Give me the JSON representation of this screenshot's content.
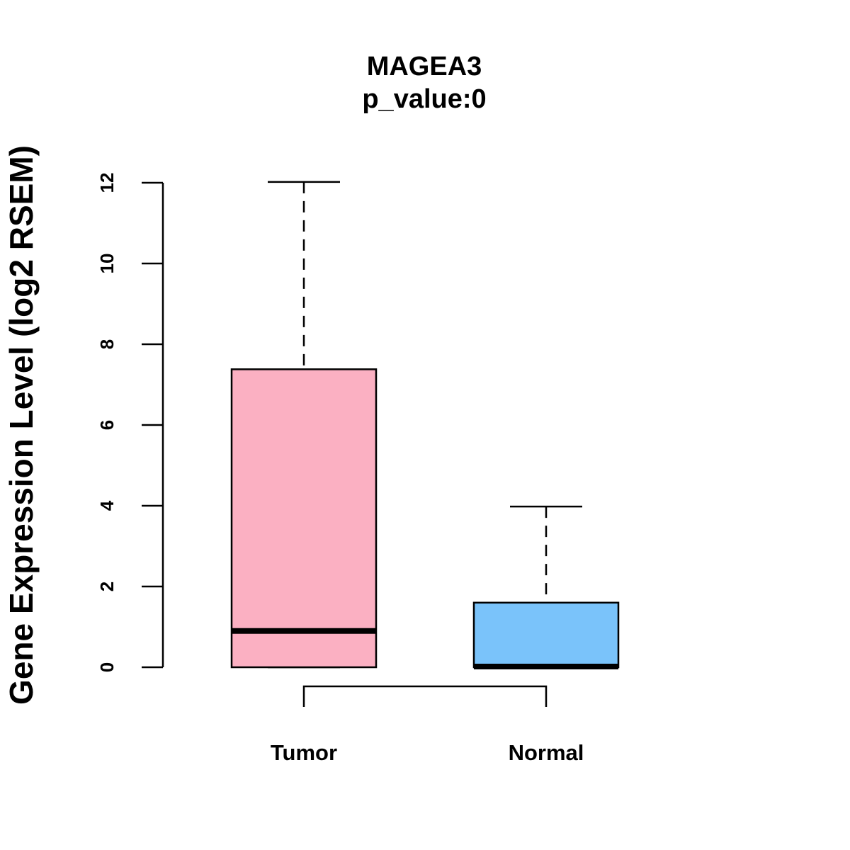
{
  "chart_data": {
    "type": "boxplot",
    "title": "MAGEA3",
    "subtitle": "p_value:0",
    "xlabel": "",
    "ylabel": "Gene Expression Level (log2 RSEM)",
    "ylim": [
      0,
      12
    ],
    "yticks": [
      "0",
      "2",
      "4",
      "6",
      "8",
      "10",
      "12"
    ],
    "categories": [
      "Tumor",
      "Normal"
    ],
    "boxes": [
      {
        "name": "Tumor",
        "min": 0,
        "q1": 0,
        "median": 0.9,
        "q3": 7.38,
        "max": 12.02,
        "color": "#FBB0C2"
      },
      {
        "name": "Normal",
        "min": 0,
        "q1": 0,
        "median": 0,
        "q3": 1.6,
        "max": 3.98,
        "color": "#7AC3FA"
      }
    ],
    "comparison_bracket": [
      "Tumor",
      "Normal"
    ],
    "grid": false,
    "legend": "none"
  }
}
